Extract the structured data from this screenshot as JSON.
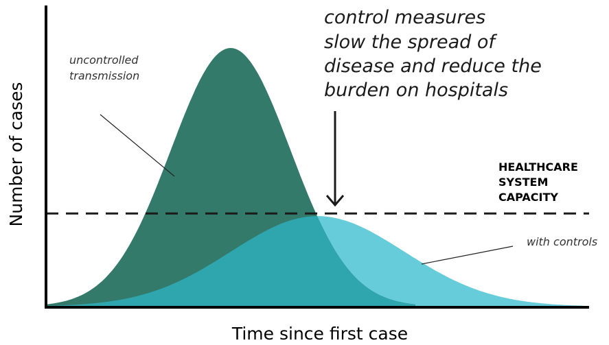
{
  "chart_data": {
    "type": "area",
    "title": "",
    "xlabel": "Time since first case",
    "ylabel": "Number of cases",
    "x_range": [
      0,
      100
    ],
    "y_range": [
      0,
      100
    ],
    "grid": false,
    "series": [
      {
        "name": "uncontrolled transmission",
        "color": "#337a6a",
        "peak_x": 34,
        "peak_y": 100,
        "spread": 11,
        "x_end": 68
      },
      {
        "name": "with controls",
        "color": "#66ccd9",
        "peak_x": 50,
        "peak_y": 35,
        "spread": 16,
        "x_end": 99
      }
    ],
    "overlap_color": "#2fa5ad",
    "capacity_line": {
      "y": 36,
      "label_lines": [
        "HEALTHCARE",
        "SYSTEM",
        "CAPACITY"
      ]
    },
    "annotation": {
      "lines": [
        "control measures",
        "slow the spread of",
        "disease and reduce the",
        "burden on hospitals"
      ]
    }
  }
}
